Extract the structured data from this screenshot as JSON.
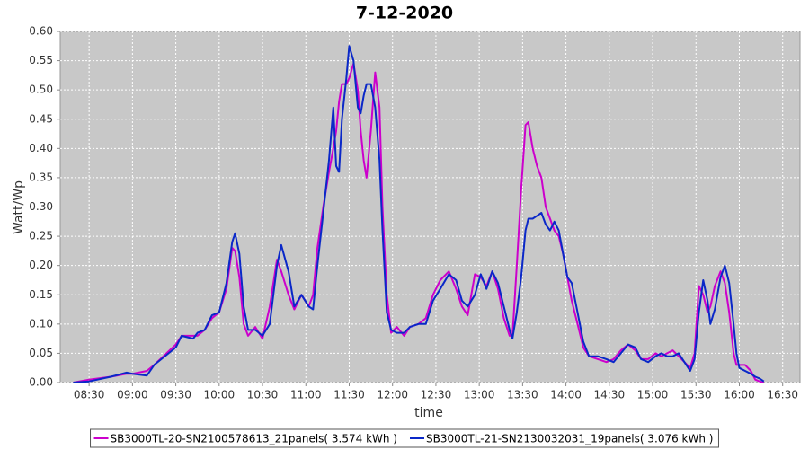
{
  "chart_data": {
    "type": "line",
    "title": "7-12-2020",
    "x_label": "time",
    "y_label": "Watt/Wp",
    "grid": true,
    "xlim": [
      "08:10",
      "16:42"
    ],
    "ylim": [
      0,
      0.6
    ],
    "xticks": [
      "08:30",
      "09:00",
      "09:30",
      "10:00",
      "10:30",
      "11:00",
      "11:30",
      "12:00",
      "12:30",
      "13:00",
      "13:30",
      "14:00",
      "14:30",
      "15:00",
      "15:30",
      "16:00",
      "16:30"
    ],
    "yticks": [
      {
        "value": 0,
        "label": "0.00"
      },
      {
        "value": 0.05,
        "label": "0.05"
      },
      {
        "value": 0.1,
        "label": "0.10"
      },
      {
        "value": 0.15,
        "label": "0.15"
      },
      {
        "value": 0.2,
        "label": "0.20"
      },
      {
        "value": 0.25,
        "label": "0.25"
      },
      {
        "value": 0.3,
        "label": "0.30"
      },
      {
        "value": 0.35,
        "label": "0.35"
      },
      {
        "value": 0.4,
        "label": "0.40"
      },
      {
        "value": 0.45,
        "label": "0.45"
      },
      {
        "value": 0.5,
        "label": "0.50"
      },
      {
        "value": 0.55,
        "label": "0.55"
      },
      {
        "value": 0.6,
        "label": "0.60"
      }
    ],
    "x": [
      "08:19",
      "08:30",
      "08:45",
      "08:56",
      "09:00",
      "09:10",
      "09:15",
      "09:30",
      "09:34",
      "09:42",
      "09:45",
      "09:50",
      "09:55",
      "10:00",
      "10:05",
      "10:09",
      "10:11",
      "10:14",
      "10:17",
      "10:20",
      "10:25",
      "10:30",
      "10:35",
      "10:40",
      "10:43",
      "10:48",
      "10:52",
      "10:57",
      "11:02",
      "11:05",
      "11:08",
      "11:12",
      "11:16",
      "11:19",
      "11:21",
      "11:23",
      "11:25",
      "11:28",
      "11:30",
      "11:33",
      "11:36",
      "11:38",
      "11:40",
      "11:42",
      "11:45",
      "11:48",
      "11:51",
      "11:53",
      "11:56",
      "11:59",
      "12:03",
      "12:08",
      "12:12",
      "12:18",
      "12:23",
      "12:28",
      "12:33",
      "12:39",
      "12:44",
      "12:48",
      "12:52",
      "12:57",
      "13:01",
      "13:05",
      "13:09",
      "13:13",
      "13:17",
      "13:21",
      "13:23",
      "13:26",
      "13:29",
      "13:32",
      "13:34",
      "13:37",
      "13:40",
      "13:43",
      "13:46",
      "13:49",
      "13:52",
      "13:55",
      "13:58",
      "14:01",
      "14:04",
      "14:08",
      "14:12",
      "14:16",
      "14:22",
      "14:28",
      "14:33",
      "14:38",
      "14:43",
      "14:48",
      "14:52",
      "14:57",
      "15:02",
      "15:06",
      "15:10",
      "15:14",
      "15:18",
      "15:22",
      "15:26",
      "15:29",
      "15:32",
      "15:35",
      "15:38",
      "15:40",
      "15:43",
      "15:47",
      "15:50",
      "15:53",
      "15:56",
      "15:58",
      "16:00",
      "16:04",
      "16:08",
      "16:11",
      "16:14",
      "16:17"
    ],
    "series": [
      {
        "name": "SB3000TL-20-SN2100578613_21panels( 3.574 kWh )",
        "color": "#cc00cc",
        "values": [
          0,
          0.005,
          0.01,
          0.015,
          0.015,
          0.02,
          0.03,
          0.065,
          0.08,
          0.08,
          0.08,
          0.09,
          0.11,
          0.12,
          0.16,
          0.23,
          0.225,
          0.18,
          0.1,
          0.08,
          0.095,
          0.075,
          0.13,
          0.21,
          0.19,
          0.15,
          0.125,
          0.15,
          0.13,
          0.15,
          0.23,
          0.3,
          0.36,
          0.4,
          0.43,
          0.48,
          0.51,
          0.51,
          0.52,
          0.545,
          0.5,
          0.43,
          0.38,
          0.35,
          0.43,
          0.53,
          0.47,
          0.3,
          0.15,
          0.085,
          0.095,
          0.08,
          0.095,
          0.1,
          0.11,
          0.15,
          0.175,
          0.19,
          0.16,
          0.13,
          0.115,
          0.185,
          0.18,
          0.165,
          0.19,
          0.16,
          0.11,
          0.08,
          0.08,
          0.2,
          0.33,
          0.44,
          0.445,
          0.4,
          0.37,
          0.35,
          0.3,
          0.28,
          0.26,
          0.25,
          0.22,
          0.18,
          0.14,
          0.1,
          0.06,
          0.045,
          0.04,
          0.035,
          0.04,
          0.055,
          0.065,
          0.055,
          0.04,
          0.04,
          0.05,
          0.045,
          0.05,
          0.055,
          0.045,
          0.035,
          0.025,
          0.05,
          0.165,
          0.15,
          0.12,
          0.13,
          0.165,
          0.19,
          0.17,
          0.12,
          0.05,
          0.03,
          0.03,
          0.03,
          0.02,
          0.005,
          0.002,
          0
        ]
      },
      {
        "name": "SB3000TL-21-SN2130032031_19panels( 3.076 kWh )",
        "color": "#0a28c8",
        "values": [
          0,
          0.002,
          0.01,
          0.017,
          0.015,
          0.012,
          0.03,
          0.06,
          0.08,
          0.075,
          0.085,
          0.09,
          0.115,
          0.12,
          0.17,
          0.24,
          0.255,
          0.22,
          0.13,
          0.09,
          0.09,
          0.08,
          0.1,
          0.2,
          0.235,
          0.19,
          0.13,
          0.15,
          0.13,
          0.125,
          0.2,
          0.29,
          0.38,
          0.47,
          0.37,
          0.36,
          0.45,
          0.52,
          0.575,
          0.55,
          0.47,
          0.46,
          0.49,
          0.51,
          0.51,
          0.47,
          0.38,
          0.26,
          0.12,
          0.09,
          0.085,
          0.085,
          0.095,
          0.1,
          0.1,
          0.14,
          0.16,
          0.185,
          0.175,
          0.14,
          0.13,
          0.15,
          0.185,
          0.16,
          0.19,
          0.17,
          0.13,
          0.09,
          0.075,
          0.12,
          0.18,
          0.26,
          0.28,
          0.28,
          0.285,
          0.29,
          0.27,
          0.26,
          0.275,
          0.26,
          0.22,
          0.18,
          0.17,
          0.12,
          0.07,
          0.045,
          0.045,
          0.04,
          0.035,
          0.05,
          0.065,
          0.06,
          0.04,
          0.035,
          0.045,
          0.05,
          0.045,
          0.045,
          0.05,
          0.035,
          0.02,
          0.04,
          0.12,
          0.175,
          0.14,
          0.1,
          0.125,
          0.18,
          0.2,
          0.17,
          0.1,
          0.05,
          0.025,
          0.02,
          0.015,
          0.01,
          0.007,
          0.002
        ]
      }
    ]
  }
}
